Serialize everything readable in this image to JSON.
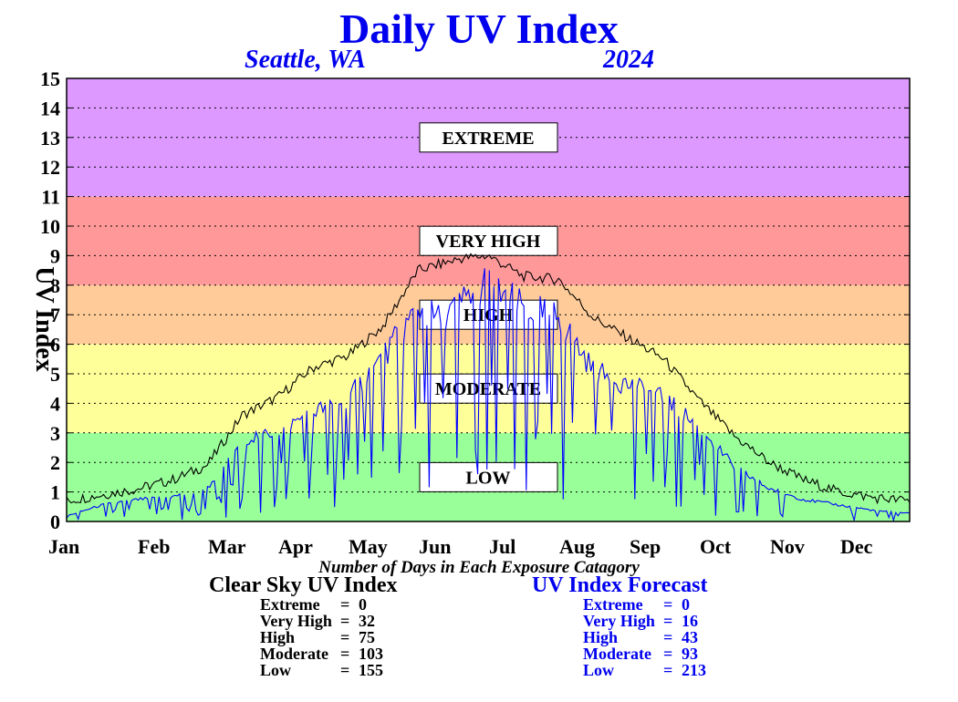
{
  "colors": {
    "extreme": "#dd99ff",
    "very_high": "#ff9999",
    "high": "#ffcc99",
    "moderate": "#ffff99",
    "low": "#99ff99",
    "clear_sky_line": "#000000",
    "forecast_line": "#0000ff",
    "title": "#0000ee"
  },
  "header": {
    "title": "Daily UV Index",
    "location": "Seattle, WA",
    "year": "2024"
  },
  "chart_data": {
    "type": "line",
    "title": "Daily UV Index",
    "ylabel": "UV Index",
    "xlabel": "",
    "ylim": [
      0,
      15
    ],
    "yticks": [
      "0",
      "1",
      "2",
      "3",
      "4",
      "5",
      "6",
      "7",
      "8",
      "9",
      "10",
      "11",
      "12",
      "13",
      "14",
      "15"
    ],
    "months": [
      "Jan",
      "Feb",
      "Mar",
      "Apr",
      "May",
      "Jun",
      "Jul",
      "Aug",
      "Sep",
      "Oct",
      "Nov",
      "Dec"
    ],
    "grid": true,
    "bands": [
      {
        "name": "LOW",
        "from": 0,
        "to": 3
      },
      {
        "name": "MODERATE",
        "from": 3,
        "to": 6
      },
      {
        "name": "HIGH",
        "from": 6,
        "to": 8
      },
      {
        "name": "VERY HIGH",
        "from": 8,
        "to": 11
      },
      {
        "name": "EXTREME",
        "from": 11,
        "to": 15
      }
    ],
    "x_unit": "month",
    "series": [
      {
        "name": "Clear Sky UV Index",
        "x": [
          0.0,
          0.5,
          1.0,
          1.5,
          2.0,
          2.5,
          3.0,
          3.5,
          4.0,
          4.5,
          5.0,
          5.3,
          5.6,
          6.0,
          6.5,
          7.0,
          7.5,
          8.0,
          8.5,
          9.0,
          9.5,
          10.0,
          10.5,
          11.0,
          11.5,
          12.0
        ],
        "values": [
          0.7,
          0.9,
          1.1,
          1.4,
          1.9,
          3.6,
          4.2,
          5.2,
          5.6,
          6.6,
          8.5,
          8.7,
          8.9,
          9.0,
          8.3,
          8.2,
          6.9,
          6.2,
          5.5,
          4.1,
          2.9,
          2.0,
          1.4,
          1.0,
          0.8,
          0.7
        ]
      },
      {
        "name": "UV Index Forecast",
        "x": [
          0.0,
          0.5,
          1.0,
          1.5,
          2.0,
          2.5,
          3.0,
          3.5,
          4.0,
          4.5,
          5.0,
          5.3,
          5.6,
          6.0,
          6.5,
          7.0,
          7.5,
          8.0,
          8.5,
          9.0,
          9.5,
          10.0,
          10.5,
          11.0,
          11.5,
          12.0
        ],
        "values": [
          0.2,
          0.6,
          0.8,
          0.9,
          1.2,
          3.0,
          3.3,
          4.0,
          4.5,
          6.0,
          7.8,
          7.4,
          8.0,
          8.8,
          7.8,
          7.5,
          5.5,
          5.0,
          4.5,
          3.5,
          2.0,
          1.2,
          0.8,
          0.6,
          0.4,
          0.3
        ],
        "variability": 1.0
      }
    ]
  },
  "stats": {
    "subtitle": "Number of Days in Each Exposure Catagory",
    "clear_sky": {
      "title": "Clear Sky UV Index",
      "rows": [
        {
          "label": "Extreme",
          "value": "0"
        },
        {
          "label": "Very High",
          "value": "32"
        },
        {
          "label": "High",
          "value": "75"
        },
        {
          "label": "Moderate",
          "value": "103"
        },
        {
          "label": "Low",
          "value": "155"
        }
      ]
    },
    "forecast": {
      "title": "UV Index Forecast",
      "rows": [
        {
          "label": "Extreme",
          "value": "0"
        },
        {
          "label": "Very High",
          "value": "16"
        },
        {
          "label": "High",
          "value": "43"
        },
        {
          "label": "Moderate",
          "value": "93"
        },
        {
          "label": "Low",
          "value": "213"
        }
      ]
    }
  }
}
